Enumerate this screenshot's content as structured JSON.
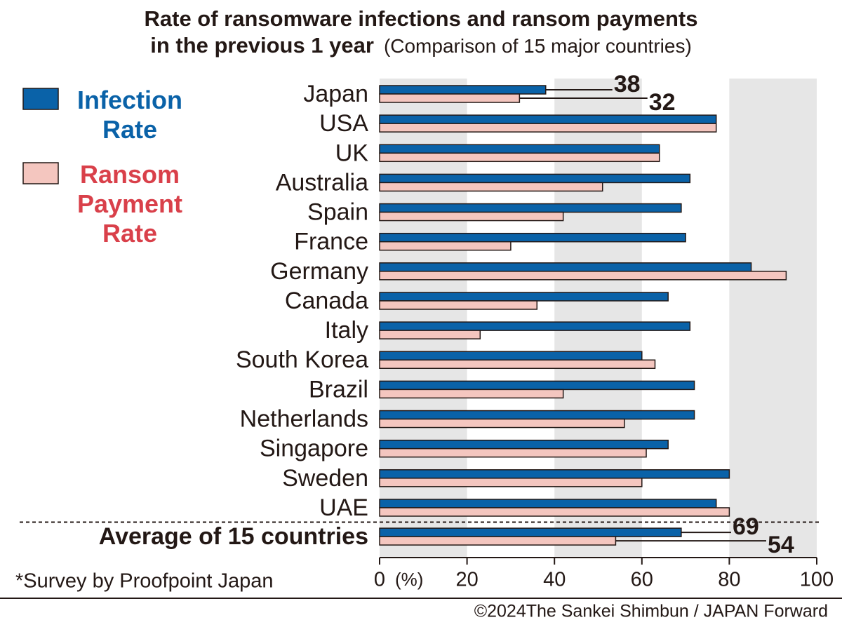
{
  "chart_data": {
    "type": "hbar",
    "title": "Rate of ransomware infections and ransom payments\nin the previous 1 year",
    "subtitle": "(Comparison of 15 major countries)",
    "categories": [
      "Japan",
      "USA",
      "UK",
      "Australia",
      "Spain",
      "France",
      "Germany",
      "Canada",
      "Italy",
      "South Korea",
      "Brazil",
      "Netherlands",
      "Singapore",
      "Sweden",
      "UAE",
      "Average of 15 countries"
    ],
    "series": [
      {
        "name": "Infection Rate",
        "color": "#0a62a8",
        "text_color": "#0a62a8",
        "values": [
          38,
          77,
          64,
          71,
          69,
          70,
          85,
          66,
          71,
          60,
          72,
          72,
          66,
          80,
          77,
          69
        ]
      },
      {
        "name": "Ransom Payment Rate",
        "color": "#f4c6bf",
        "text_color": "#d9404a",
        "values": [
          32,
          77,
          64,
          51,
          42,
          30,
          93,
          36,
          23,
          63,
          42,
          56,
          61,
          60,
          80,
          54
        ]
      }
    ],
    "data_labels_at": [
      0,
      15
    ],
    "xlim": [
      0,
      100
    ],
    "xticks": [
      0,
      20,
      40,
      60,
      80,
      100
    ],
    "x_unit": "(%)",
    "shaded_bands": true,
    "legend": "top-left",
    "footnote": "*Survey by Proofpoint Japan",
    "credit": "©2024The Sankei Shimbun / JAPAN Forward"
  }
}
